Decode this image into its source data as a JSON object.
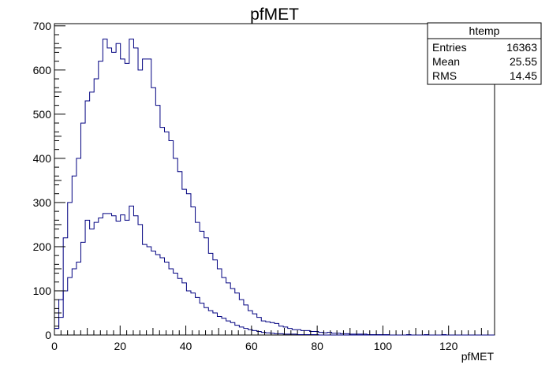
{
  "chart_data": {
    "type": "histogram",
    "title": "pfMET",
    "xlabel": "pfMET",
    "ylabel": "",
    "xlim": [
      0,
      134
    ],
    "ylim": [
      0,
      705
    ],
    "bin_width": 1.34,
    "xticks": [
      0,
      20,
      40,
      60,
      80,
      100,
      120
    ],
    "yticks": [
      0,
      100,
      200,
      300,
      400,
      500,
      600,
      700
    ],
    "stats_box": {
      "name": "htemp",
      "rows": [
        {
          "label": "Entries",
          "value": "16363"
        },
        {
          "label": "Mean",
          "value": "25.55"
        },
        {
          "label": "RMS",
          "value": "14.45"
        }
      ]
    },
    "series": [
      {
        "values": [
          15,
          80,
          220,
          300,
          360,
          400,
          480,
          530,
          550,
          580,
          620,
          670,
          650,
          640,
          660,
          625,
          615,
          670,
          650,
          600,
          625,
          625,
          560,
          520,
          470,
          460,
          440,
          400,
          370,
          330,
          320,
          290,
          255,
          235,
          220,
          185,
          170,
          150,
          130,
          118,
          105,
          95,
          80,
          68,
          55,
          48,
          40,
          32,
          30,
          28,
          26,
          20,
          18,
          15,
          12,
          12,
          10,
          10,
          8,
          8,
          6,
          5,
          6,
          4,
          4,
          3,
          3,
          2,
          2,
          2,
          2,
          1,
          1,
          1,
          1,
          1,
          0,
          0,
          0,
          0,
          1,
          0,
          0,
          0,
          1,
          0,
          0,
          0,
          1,
          0,
          0,
          0,
          0,
          0,
          0,
          0,
          0,
          0,
          0,
          0
        ]
      },
      {
        "values": [
          15,
          40,
          100,
          130,
          150,
          165,
          210,
          260,
          240,
          255,
          265,
          275,
          275,
          270,
          258,
          272,
          260,
          292,
          270,
          250,
          205,
          200,
          190,
          182,
          175,
          165,
          150,
          140,
          128,
          118,
          100,
          95,
          85,
          72,
          62,
          55,
          50,
          42,
          38,
          32,
          28,
          22,
          18,
          15,
          12,
          10,
          8,
          6,
          5,
          4,
          3,
          3,
          2,
          2,
          2,
          1,
          1,
          1,
          1,
          1,
          0,
          0,
          0,
          0,
          0,
          0,
          0,
          0,
          0,
          0,
          0,
          0,
          0,
          0,
          0,
          0,
          0,
          0,
          0,
          0,
          0,
          0,
          0,
          0,
          0,
          0,
          0,
          0,
          0,
          0,
          0,
          0,
          0,
          0,
          0,
          0,
          0,
          0,
          0,
          0
        ]
      }
    ]
  }
}
